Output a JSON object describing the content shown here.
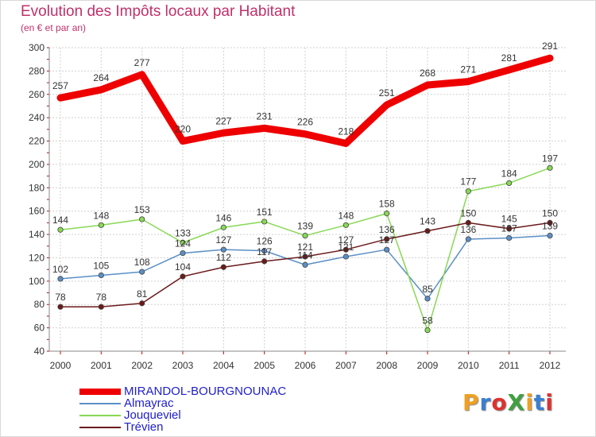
{
  "page": {
    "title": "Evolution des Impôts locaux par Habitant",
    "subtitle": "(en € et par an)",
    "logo": "ProXiti",
    "logo_colors": [
      "#f0a020",
      "#3a7fd0",
      "#e03030",
      "#40a040",
      "#f0a020",
      "#3a7fd0",
      "#e03030"
    ]
  },
  "chart_data": {
    "type": "line",
    "title": "Evolution des Impôts locaux par Habitant",
    "subtitle": "(en € et par an)",
    "xlabel": "",
    "ylabel": "",
    "x": [
      "2000",
      "2001",
      "2002",
      "2003",
      "2004",
      "2005",
      "2006",
      "2007",
      "2008",
      "2009",
      "2010",
      "2011",
      "2012"
    ],
    "ylim": [
      40,
      300
    ],
    "yticks": [
      40,
      60,
      80,
      100,
      120,
      140,
      160,
      180,
      200,
      220,
      240,
      260,
      280,
      300
    ],
    "grid": true,
    "legend_position": "bottom-left",
    "series": [
      {
        "name": "MIRANDOL-BOURGNOUNAC",
        "color": "#ee0000",
        "label_color": "#2020cc",
        "values": [
          257,
          264,
          277,
          220,
          227,
          231,
          226,
          218,
          251,
          268,
          271,
          281,
          291
        ],
        "labels": [
          "257",
          "264",
          "277",
          "220",
          "227",
          "231",
          "226",
          "218",
          "251",
          "268",
          "271",
          "281",
          "291"
        ]
      },
      {
        "name": "Almayrac",
        "color": "#5b8fc5",
        "label_color": "#2020cc",
        "values": [
          102,
          105,
          108,
          124,
          127,
          126,
          114,
          121,
          127,
          85,
          136,
          137,
          139
        ],
        "labels": [
          "102",
          "105",
          "108",
          "124",
          "127",
          "126",
          "114",
          "121",
          "127",
          "85",
          "136",
          "137",
          "139"
        ]
      },
      {
        "name": "Jouqueviel",
        "color": "#88d855",
        "label_color": "#2020cc",
        "values": [
          144,
          148,
          153,
          133,
          146,
          151,
          139,
          148,
          158,
          58,
          177,
          184,
          197
        ],
        "labels": [
          "144",
          "148",
          "153",
          "133",
          "146",
          "151",
          "139",
          "148",
          "158",
          "58",
          "177",
          "184",
          "197"
        ]
      },
      {
        "name": "Trévien",
        "color": "#6b1a1a",
        "label_color": "#2020cc",
        "values": [
          78,
          78,
          81,
          104,
          112,
          117,
          121,
          127,
          136,
          143,
          150,
          145,
          150
        ],
        "labels": [
          "78",
          "78",
          "81",
          "104",
          "112",
          "117",
          "121",
          "127",
          "136",
          "143",
          "150",
          "145",
          "150"
        ]
      }
    ]
  }
}
